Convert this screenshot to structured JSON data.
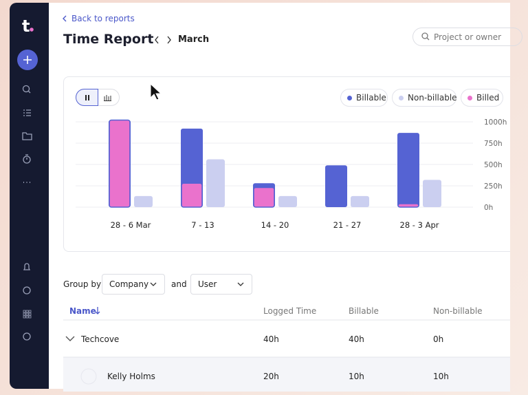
{
  "header": {
    "logo": "t",
    "back_link": "Back to reports",
    "title": "Time Report",
    "month": "March",
    "search_placeholder": "Project or owner"
  },
  "chart_data": {
    "type": "bar",
    "categories": [
      "28 - 6 Mar",
      "7 - 13",
      "14 - 20",
      "21 - 27",
      "28 - 3 Apr"
    ],
    "series": [
      {
        "name": "Billable",
        "color": "#5563d3",
        "values": [
          1020,
          920,
          280,
          490,
          870
        ]
      },
      {
        "name": "Non-billable",
        "color": "#cbcff0",
        "values": [
          130,
          560,
          130,
          130,
          320
        ]
      },
      {
        "name": "Billed",
        "color": "#ea72cc",
        "values": [
          1020,
          280,
          230,
          0,
          40
        ]
      }
    ],
    "ylim": [
      0,
      1000
    ],
    "yticks": [
      {
        "value": 0,
        "label": "0h"
      },
      {
        "value": 250,
        "label": "250h"
      },
      {
        "value": 500,
        "label": "500h"
      },
      {
        "value": 750,
        "label": "750h"
      },
      {
        "value": 1000,
        "label": "1000h"
      }
    ],
    "grid": true,
    "legend": "top-right"
  },
  "filters": {
    "label": "Group by",
    "first": "Company",
    "joiner": "and",
    "second": "User"
  },
  "table": {
    "columns": [
      "Name",
      "Logged Time",
      "Billable",
      "Non-billable"
    ],
    "rows": [
      [
        "Techcove",
        "40h",
        "40h",
        "0h"
      ],
      [
        "Kelly Holms",
        "20h",
        "10h",
        "10h"
      ]
    ]
  }
}
